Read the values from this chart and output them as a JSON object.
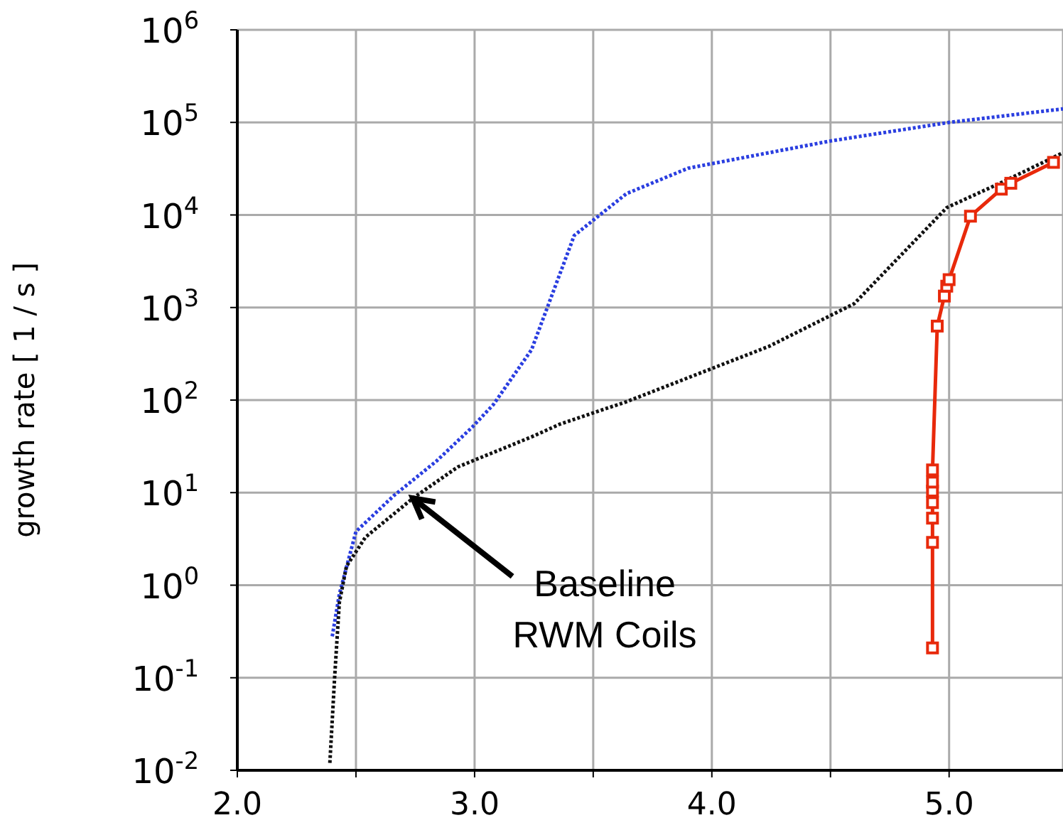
{
  "chart_data": {
    "type": "line",
    "ylabel": "growth rate [ 1 / s ]",
    "log": "y",
    "grid": true,
    "xlim": [
      2.0,
      5.48
    ],
    "xticks": [
      {
        "value": 2,
        "label": "2.0"
      },
      {
        "value": 2.5,
        "label": null
      },
      {
        "value": 3,
        "label": "3.0"
      },
      {
        "value": 3.5,
        "label": null
      },
      {
        "value": 4,
        "label": "4.0"
      },
      {
        "value": 4.5,
        "label": null
      },
      {
        "value": 5,
        "label": "5.0"
      }
    ],
    "ylim": [
      0.01,
      1000000
    ],
    "yticks": [
      {
        "value": 0.01,
        "label": "10$^{-2}$"
      },
      {
        "value": 0.1,
        "label": "10$^{-1}$"
      },
      {
        "value": 1,
        "label": "10$^{0}$"
      },
      {
        "value": 10,
        "label": "10$^{1}$"
      },
      {
        "value": 100,
        "label": "10$^{2}$"
      },
      {
        "value": 1000,
        "label": "10$^{3}$"
      },
      {
        "value": 10000,
        "label": "10$^{4}$"
      },
      {
        "value": 100000,
        "label": "10$^{5}$"
      },
      {
        "value": 1000000,
        "label": "10$^{6}$"
      }
    ],
    "series": [
      {
        "color": "#2a3ee0",
        "line_style": "dotted",
        "marker": "none",
        "x": [
          2.4,
          2.43,
          2.5,
          2.66,
          2.84,
          2.99,
          3.08,
          3.24,
          3.42,
          3.64,
          3.9,
          4.24,
          4.5,
          5.0,
          5.48
        ],
        "values": [
          0.28,
          0.8,
          3.8,
          9.3,
          22,
          51,
          90,
          350,
          6000,
          17000,
          32000,
          47000,
          63000,
          100000,
          140000
        ]
      },
      {
        "color": "#111111",
        "line_style": "dotted",
        "marker": "none",
        "x": [
          2.39,
          2.41,
          2.43,
          2.46,
          2.54,
          2.74,
          2.93,
          3.24,
          3.36,
          3.64,
          4.24,
          4.6,
          4.99,
          5.23,
          5.48
        ],
        "values": [
          0.012,
          0.1,
          0.65,
          1.6,
          3.3,
          8.7,
          19,
          40,
          55,
          96,
          380,
          1100,
          12000,
          23000,
          47000
        ]
      },
      {
        "color": "#e8290b",
        "line_style": "solid",
        "marker": "square",
        "x": [
          4.93,
          4.93,
          4.93,
          4.93,
          4.93,
          4.93,
          4.93,
          4.95,
          4.98,
          4.99,
          5.0,
          5.09,
          5.22,
          5.26,
          5.44
        ],
        "values": [
          0.21,
          2.9,
          5.3,
          7.8,
          10.4,
          13,
          17.6,
          630,
          1330,
          1700,
          2000,
          9700,
          19000,
          22000,
          37000
        ]
      }
    ],
    "annotations": [
      {
        "text": "Baseline\nRWM Coils",
        "x": 2.74,
        "y": 8.7
      }
    ]
  }
}
